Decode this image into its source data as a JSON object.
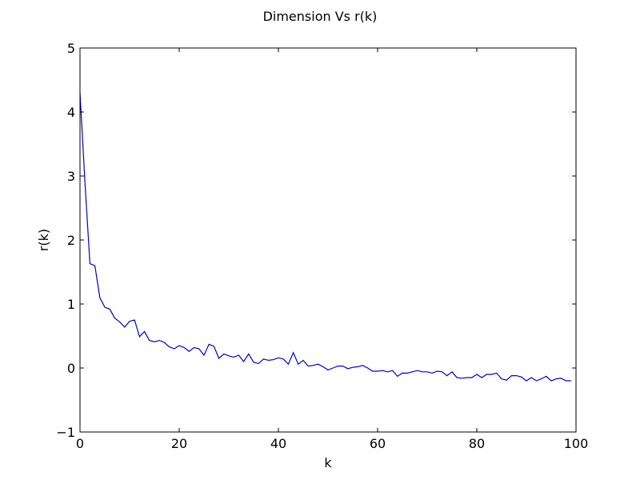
{
  "chart_data": {
    "type": "line",
    "title": "Dimension Vs r(k)",
    "xlabel": "k",
    "ylabel": "r(k)",
    "xlim": [
      0,
      100
    ],
    "ylim": [
      -1,
      5
    ],
    "xticks": [
      0,
      20,
      40,
      60,
      80,
      100
    ],
    "yticks": [
      -1,
      0,
      1,
      2,
      3,
      4,
      5
    ],
    "xtick_labels": [
      "0",
      "20",
      "40",
      "60",
      "80",
      "100"
    ],
    "ytick_labels": [
      "−1",
      "0",
      "1",
      "2",
      "3",
      "4",
      "5"
    ],
    "grid": false,
    "line_color": "#0000cc",
    "series": [
      {
        "x": [
          0,
          1,
          2,
          3,
          4,
          5,
          6,
          7,
          8,
          9,
          10,
          11,
          12,
          13,
          14,
          15,
          16,
          17,
          18,
          19,
          20,
          21,
          22,
          23,
          24,
          25,
          26,
          27,
          28,
          29,
          30,
          31,
          32,
          33,
          34,
          35,
          36,
          37,
          38,
          39,
          40,
          41,
          42,
          43,
          44,
          45,
          46,
          47,
          48,
          49,
          50,
          51,
          52,
          53,
          54,
          55,
          56,
          57,
          58,
          59,
          60,
          61,
          62,
          63,
          64,
          65,
          66,
          67,
          68,
          69,
          70,
          71,
          72,
          73,
          74,
          75,
          76,
          77,
          78,
          79,
          80,
          81,
          82,
          83,
          84,
          85,
          86,
          87,
          88,
          89,
          90,
          91,
          92,
          93,
          94,
          95,
          96,
          97,
          98,
          99
        ],
        "y": [
          4.3,
          2.9,
          1.63,
          1.6,
          1.1,
          0.95,
          0.92,
          0.78,
          0.72,
          0.64,
          0.73,
          0.75,
          0.49,
          0.57,
          0.43,
          0.41,
          0.43,
          0.4,
          0.33,
          0.3,
          0.35,
          0.32,
          0.26,
          0.32,
          0.3,
          0.2,
          0.37,
          0.34,
          0.15,
          0.22,
          0.19,
          0.17,
          0.2,
          0.1,
          0.22,
          0.09,
          0.07,
          0.14,
          0.12,
          0.13,
          0.16,
          0.14,
          0.06,
          0.24,
          0.06,
          0.12,
          0.03,
          0.04,
          0.06,
          0.02,
          -0.03,
          0.0,
          0.03,
          0.03,
          -0.01,
          0.01,
          0.02,
          0.04,
          0.0,
          -0.05,
          -0.05,
          -0.04,
          -0.06,
          -0.04,
          -0.13,
          -0.08,
          -0.08,
          -0.06,
          -0.04,
          -0.06,
          -0.06,
          -0.08,
          -0.05,
          -0.06,
          -0.12,
          -0.06,
          -0.15,
          -0.16,
          -0.15,
          -0.15,
          -0.1,
          -0.15,
          -0.1,
          -0.1,
          -0.08,
          -0.17,
          -0.19,
          -0.12,
          -0.12,
          -0.14,
          -0.2,
          -0.15,
          -0.2,
          -0.17,
          -0.13,
          -0.2,
          -0.17,
          -0.16,
          -0.2,
          -0.2
        ]
      }
    ]
  }
}
